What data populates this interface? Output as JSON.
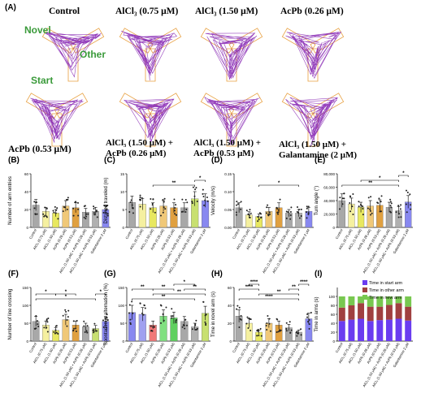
{
  "figure": {
    "panel_a_letter": "(A)",
    "maze_row1": [
      "Control",
      "AlCl₃ (0.75 μM)",
      "AlCl₃ (1.50 μM)",
      "AcPb (0.26 μM)"
    ],
    "maze_row2": [
      "AcPb (0.53 μM)",
      "AlCl₃ (1.50 μM) + AcPb (0.26 μM)",
      "AlCl₃ (1.50 μM) + AcPb (0.53 μM)",
      "AlCl₃ (1.50 μM) + Galantamine (2 μM)"
    ],
    "arm_labels": {
      "novel": "Novel",
      "other": "Other",
      "start": "Start"
    },
    "colors": {
      "arm_label": "#3a9a3a",
      "track": "#8a2bb5",
      "arm_outline": "#e8a040"
    }
  },
  "groups": [
    "Control",
    "AlCl₃ (0.75 μM)",
    "AlCl₃ (1.50 μM)",
    "AcPb (0.26 μM)",
    "AcPb (0.53 μM)",
    "AlCl₃ (1.50 μM) + AcPb (0.26 μM)",
    "AlCl₃ (1.50 μM) + AcPb (0.53 μM)",
    "Galantamine 2 μM"
  ],
  "chart_data": [
    {
      "panel": "(B)",
      "type": "bar",
      "ylabel": "Number of arm entries",
      "yticks": [
        "0",
        "20",
        "40",
        "60"
      ],
      "ylim": [
        0,
        60
      ],
      "colors": [
        "#a8a8a8",
        "#f5f0a0",
        "#e8e860",
        "#f0c878",
        "#e0a040",
        "#a8a8a8",
        "#b0b0b0",
        "#8888f0"
      ],
      "values": [
        25,
        18,
        16,
        24,
        22,
        17,
        18,
        20
      ],
      "brackets": []
    },
    {
      "panel": "(C)",
      "type": "bar",
      "ylabel": "Distance traveled (m)",
      "yticks": [
        "0",
        "5",
        "10",
        "15"
      ],
      "ylim": [
        0,
        15
      ],
      "colors": [
        "#a8a8a8",
        "#f5f0a0",
        "#e8e860",
        "#f0c878",
        "#e0a040",
        "#a8a8a8",
        "#c8e070",
        "#8888f0"
      ],
      "values": [
        7,
        6.5,
        5.5,
        6,
        5.5,
        5.5,
        8,
        7.5
      ],
      "brackets": [
        {
          "from": 2,
          "to": 6,
          "label": "**",
          "level": 0
        },
        {
          "from": 6,
          "to": 7,
          "label": "*",
          "level": 1
        }
      ]
    },
    {
      "panel": "(D)",
      "type": "bar",
      "ylabel": "Velocity (m/s)",
      "yticks": [
        "0.00",
        "0.05",
        "0.10",
        "0.15"
      ],
      "ylim": [
        0,
        0.15
      ],
      "colors": [
        "#a8a8a8",
        "#f5f0a0",
        "#e8e860",
        "#f0c878",
        "#e0a040",
        "#a8a8a8",
        "#b0b0b0",
        "#8888f0"
      ],
      "values": [
        0.055,
        0.035,
        0.03,
        0.045,
        0.055,
        0.04,
        0.04,
        0.045
      ],
      "brackets": [
        {
          "from": 2,
          "to": 6,
          "label": "*",
          "level": 0
        }
      ]
    },
    {
      "panel": "(E)",
      "type": "bar",
      "ylabel": "Turn angle (°)",
      "yticks": [
        "0",
        "20,000",
        "40,000",
        "60,000",
        "80,000"
      ],
      "ylim": [
        0,
        80000
      ],
      "colors": [
        "#a8a8a8",
        "#f5f0a0",
        "#e8e860",
        "#f0c878",
        "#e0a040",
        "#a8a8a8",
        "#b0b0b0",
        "#8888f0"
      ],
      "values": [
        40000,
        35000,
        30000,
        32000,
        33000,
        30000,
        25000,
        38000
      ],
      "brackets": [
        {
          "from": 0,
          "to": 6,
          "label": "**",
          "level": 0
        },
        {
          "from": 2,
          "to": 6,
          "label": "*",
          "level": 1
        },
        {
          "from": 6,
          "to": 7,
          "label": "*",
          "level": 2
        }
      ]
    },
    {
      "panel": "(F)",
      "type": "bar",
      "ylabel": "Number of line crossing",
      "yticks": [
        "0",
        "50",
        "100",
        "150"
      ],
      "ylim": [
        0,
        150
      ],
      "colors": [
        "#a8a8a8",
        "#f5f0a0",
        "#e8e860",
        "#f0c878",
        "#e0a040",
        "#a8a8a8",
        "#c8e070",
        "#8888f0"
      ],
      "values": [
        55,
        45,
        30,
        60,
        45,
        40,
        35,
        55
      ],
      "brackets": [
        {
          "from": 0,
          "to": 6,
          "label": "*",
          "level": 0
        },
        {
          "from": 0,
          "to": 2,
          "label": "*",
          "level": 1
        },
        {
          "from": 2,
          "to": 4,
          "label": "*",
          "level": 1
        },
        {
          "from": 6,
          "to": 7,
          "label": "*",
          "level": 1
        }
      ]
    },
    {
      "panel": "(G)",
      "type": "bar",
      "ylabel": "Spontaneous alternation (%)",
      "yticks": [
        "0",
        "50",
        "100",
        "150"
      ],
      "ylim": [
        0,
        150
      ],
      "colors": [
        "#8888f0",
        "#a0a0f0",
        "#f07878",
        "#80e080",
        "#60d060",
        "#a8a8a8",
        "#b0b0b0",
        "#c8e070"
      ],
      "values": [
        80,
        75,
        45,
        70,
        65,
        55,
        40,
        78
      ],
      "brackets": [
        {
          "from": 0,
          "to": 6,
          "label": "**",
          "level": 0
        },
        {
          "from": 2,
          "to": 7,
          "label": "**",
          "level": 1
        },
        {
          "from": 0,
          "to": 2,
          "label": "**",
          "level": 2
        },
        {
          "from": 2,
          "to": 4,
          "label": "**",
          "level": 2
        },
        {
          "from": 5,
          "to": 7,
          "label": "**",
          "level": 2
        },
        {
          "from": 4,
          "to": 6,
          "label": "*",
          "level": 3
        }
      ]
    },
    {
      "panel": "(H)",
      "type": "bar",
      "ylabel": "Time in novel arm (s)",
      "yticks": [
        "0",
        "20",
        "40",
        "60"
      ],
      "ylim": [
        0,
        60
      ],
      "colors": [
        "#a8a8a8",
        "#f5f0a0",
        "#e8e860",
        "#f0c878",
        "#e0a040",
        "#a8a8a8",
        "#b0b0b0",
        "#8888f0"
      ],
      "values": [
        28,
        20,
        10,
        20,
        18,
        15,
        10,
        25
      ],
      "brackets": [
        {
          "from": 0,
          "to": 6,
          "label": "****",
          "level": 0
        },
        {
          "from": 2,
          "to": 6,
          "label": "**",
          "level": 1
        },
        {
          "from": 0,
          "to": 2,
          "label": "****",
          "level": 2
        },
        {
          "from": 5,
          "to": 6,
          "label": "**",
          "level": 2
        },
        {
          "from": 1,
          "to": 2,
          "label": "****",
          "level": 3
        },
        {
          "from": 6,
          "to": 7,
          "label": "****",
          "level": 3
        }
      ]
    },
    {
      "panel": "(I)",
      "type": "stacked_bar",
      "ylabel": "Time in arms (s)",
      "yticks": [
        "0",
        "20",
        "40",
        "60",
        "80",
        "100"
      ],
      "ylim": [
        0,
        120
      ],
      "legend": [
        "Time in start arm",
        "Time in other arm",
        "Time in new arm"
      ],
      "legend_colors": [
        "#6a3cf0",
        "#a04040",
        "#78c850"
      ],
      "series": [
        {
          "values": [
            45,
            48,
            50,
            45,
            47,
            48,
            50,
            46
          ]
        },
        {
          "values": [
            30,
            32,
            35,
            32,
            30,
            33,
            35,
            31
          ]
        },
        {
          "values": [
            25,
            20,
            15,
            23,
            23,
            19,
            15,
            23
          ]
        }
      ]
    }
  ]
}
